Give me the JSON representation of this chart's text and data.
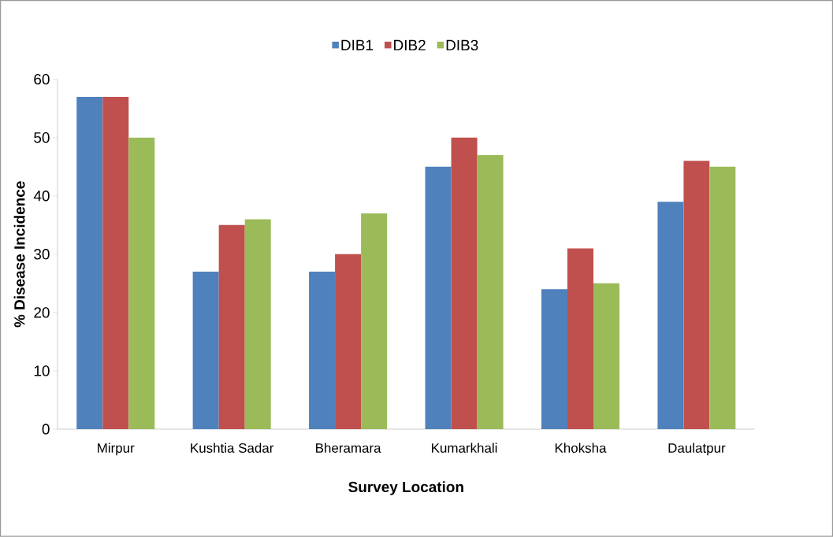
{
  "chart_data": {
    "type": "bar",
    "xlabel": "Survey Location",
    "ylabel": "% Disease Incidence",
    "categories": [
      "Mirpur",
      "Kushtia Sadar",
      "Bheramara",
      "Kumarkhali",
      "Khoksha",
      "Daulatpur"
    ],
    "series": [
      {
        "name": "DIB1",
        "color": "#4f81bd",
        "values": [
          57,
          27,
          27,
          45,
          24,
          39
        ]
      },
      {
        "name": "DIB2",
        "color": "#c0504d",
        "values": [
          57,
          35,
          30,
          50,
          31,
          46
        ]
      },
      {
        "name": "DIB3",
        "color": "#9bbb59",
        "values": [
          50,
          36,
          37,
          47,
          25,
          45
        ]
      }
    ],
    "ylim": [
      0,
      60
    ],
    "yticks": [
      0,
      10,
      20,
      30,
      40,
      50,
      60
    ],
    "grid": false,
    "legend": "top"
  }
}
